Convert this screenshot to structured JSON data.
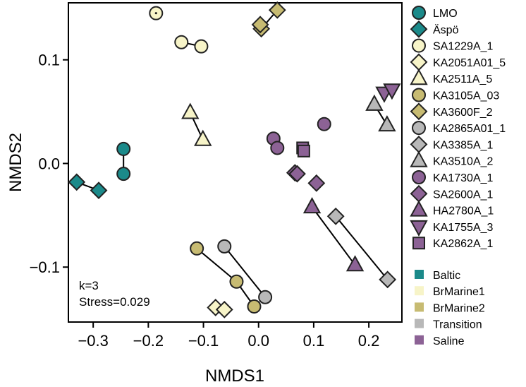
{
  "chart_data": {
    "type": "scatter",
    "xlabel": "NMDS1",
    "ylabel": "NMDS2",
    "xlim": [
      -0.345,
      0.26
    ],
    "ylim": [
      -0.153,
      0.155
    ],
    "xticks": [
      -0.3,
      -0.2,
      -0.1,
      0.0,
      0.1,
      0.2
    ],
    "xtick_labels": [
      "−0.3",
      "−0.2",
      "−0.1",
      "0.0",
      "0.1",
      "0.2"
    ],
    "yticks": [
      -0.1,
      0.0,
      0.1
    ],
    "ytick_labels": [
      "−0.1",
      "0.0",
      "0.1"
    ],
    "annotations": [
      "k=3",
      "Stress=0.029"
    ],
    "groups": [
      {
        "name": "Baltic",
        "color": "#1b8a8a"
      },
      {
        "name": "BrMarine1",
        "color": "#f7f4c8"
      },
      {
        "name": "BrMarine2",
        "color": "#c7bb72"
      },
      {
        "name": "Transition",
        "color": "#b8b8b8"
      },
      {
        "name": "Saline",
        "color": "#8c6295"
      }
    ],
    "series": [
      {
        "name": "LMO",
        "shape": "circle",
        "group": "Baltic",
        "points": [
          [
            -0.245,
            0.014
          ],
          [
            -0.245,
            -0.01
          ]
        ]
      },
      {
        "name": "Äspö",
        "shape": "diamond",
        "group": "Baltic",
        "points": [
          [
            -0.33,
            -0.018
          ],
          [
            -0.29,
            -0.026
          ]
        ]
      },
      {
        "name": "SA1229A_1",
        "shape": "circle",
        "group": "BrMarine1",
        "points": [
          [
            -0.186,
            0.145
          ]
        ]
      },
      {
        "name": "KA2051A01_5",
        "shape": "diamond",
        "group": "BrMarine1",
        "points": [
          [
            -0.078,
            -0.139
          ],
          [
            -0.062,
            -0.141
          ]
        ]
      },
      {
        "name": "KA2511A_5",
        "shape": "triangle-up",
        "group": "BrMarine1",
        "points": [
          [
            -0.124,
            0.049
          ],
          [
            -0.101,
            0.023
          ]
        ]
      },
      {
        "name": "KA3105A_03",
        "shape": "circle",
        "group": "BrMarine2",
        "points": [
          [
            -0.112,
            -0.082
          ],
          [
            -0.04,
            -0.114
          ],
          [
            -0.008,
            -0.138
          ]
        ]
      },
      {
        "name": "KA3600F_2",
        "shape": "diamond",
        "group": "BrMarine2",
        "points": [
          [
            0.005,
            0.13
          ],
          [
            0.034,
            0.148
          ],
          [
            0.003,
            0.134
          ]
        ]
      },
      {
        "name": "KA2865A01_1",
        "shape": "circle",
        "group": "Transition",
        "points": [
          [
            -0.062,
            -0.08
          ],
          [
            0.012,
            -0.129
          ]
        ]
      },
      {
        "name": "KA3385A_1",
        "shape": "diamond",
        "group": "Transition",
        "points": [
          [
            0.14,
            -0.051
          ],
          [
            0.234,
            -0.112
          ]
        ]
      },
      {
        "name": "KA3510A_2",
        "shape": "triangle-up",
        "group": "Transition",
        "points": [
          [
            0.21,
            0.057
          ],
          [
            0.233,
            0.037
          ]
        ]
      },
      {
        "name": "KA1730A_1",
        "shape": "circle",
        "group": "Saline",
        "points": [
          [
            0.027,
            0.024
          ],
          [
            0.034,
            0.015
          ],
          [
            0.119,
            0.038
          ]
        ]
      },
      {
        "name": "SA2600A_1",
        "shape": "diamond",
        "group": "Saline",
        "points": [
          [
            0.066,
            -0.009
          ],
          [
            0.07,
            -0.01
          ],
          [
            0.105,
            -0.019
          ]
        ]
      },
      {
        "name": "HA2780A_1",
        "shape": "triangle-up",
        "group": "Saline",
        "points": [
          [
            0.097,
            -0.042
          ],
          [
            0.175,
            -0.098
          ]
        ]
      },
      {
        "name": "KA1755A_3",
        "shape": "triangle-down",
        "group": "Saline",
        "points": [
          [
            0.228,
            0.068
          ],
          [
            0.242,
            0.071
          ]
        ]
      },
      {
        "name": "KA2862A_1",
        "shape": "square",
        "group": "Saline",
        "points": [
          [
            0.08,
            0.015
          ],
          [
            0.082,
            0.012
          ]
        ]
      }
    ],
    "segments": [
      [
        [
          -0.245,
          0.014
        ],
        [
          -0.245,
          -0.01
        ]
      ],
      [
        [
          -0.33,
          -0.018
        ],
        [
          -0.29,
          -0.026
        ]
      ],
      [
        [
          -0.14,
          0.117
        ],
        [
          -0.104,
          0.113
        ]
      ],
      [
        [
          -0.124,
          0.049
        ],
        [
          -0.101,
          0.023
        ]
      ],
      [
        [
          -0.078,
          -0.139
        ],
        [
          -0.062,
          -0.141
        ]
      ],
      [
        [
          -0.112,
          -0.082
        ],
        [
          -0.04,
          -0.114
        ],
        [
          -0.008,
          -0.138
        ]
      ],
      [
        [
          -0.062,
          -0.08
        ],
        [
          0.012,
          -0.129
        ]
      ],
      [
        [
          0.027,
          0.024
        ],
        [
          0.034,
          0.015
        ]
      ],
      [
        [
          0.066,
          -0.009
        ],
        [
          0.07,
          -0.01
        ]
      ],
      [
        [
          0.097,
          -0.042
        ],
        [
          0.175,
          -0.098
        ]
      ],
      [
        [
          0.14,
          -0.051
        ],
        [
          0.234,
          -0.112
        ]
      ],
      [
        [
          0.005,
          0.13
        ],
        [
          0.034,
          0.148
        ]
      ],
      [
        [
          0.21,
          0.057
        ],
        [
          0.233,
          0.037
        ]
      ],
      [
        [
          0.228,
          0.068
        ],
        [
          0.242,
          0.071
        ]
      ]
    ],
    "extra_points": [
      {
        "series": "SA1229A_1",
        "points": [
          [
            -0.14,
            0.117
          ],
          [
            -0.104,
            0.113
          ]
        ]
      }
    ]
  }
}
